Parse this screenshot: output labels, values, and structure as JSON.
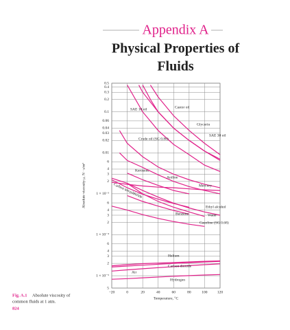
{
  "heading": {
    "label": "Appendix A",
    "title_lines": [
      "Physical Properties of",
      "Fluids"
    ]
  },
  "caption": {
    "label": "Fig. A.1",
    "lines": [
      "Absolute viscosity of",
      "common fluids at 1 atm."
    ]
  },
  "page_number": "824",
  "chart_data": {
    "type": "line",
    "log_y": true,
    "grid": true,
    "color": "#e0218a",
    "ylabel": "Absolute viscosity μ, N · s/m²",
    "xlabel": "Temperature, °C",
    "xlim": [
      -20,
      120
    ],
    "xticks": [
      {
        "value": -20,
        "label": "−20"
      },
      0,
      20,
      40,
      60,
      80,
      100,
      120
    ],
    "ylim": [
      5e-06,
      0.5
    ],
    "yticks": [
      0.5,
      0.4,
      0.3,
      0.2,
      0.1,
      0.06,
      0.04,
      0.03,
      0.02,
      0.01,
      {
        "value": 0.006,
        "label": "6"
      },
      {
        "value": 0.004,
        "label": "4"
      },
      {
        "value": 0.003,
        "label": "3"
      },
      {
        "value": 0.002,
        "label": "2"
      },
      {
        "value": 0.001,
        "label": "1 × 10⁻³"
      },
      {
        "value": 0.0006,
        "label": "6"
      },
      {
        "value": 0.0004,
        "label": "4"
      },
      {
        "value": 0.0003,
        "label": "3"
      },
      {
        "value": 0.0002,
        "label": "2"
      },
      {
        "value": 0.0001,
        "label": "1 × 10⁻⁴"
      },
      {
        "value": 6e-05,
        "label": "6"
      },
      {
        "value": 4e-05,
        "label": "4"
      },
      {
        "value": 3e-05,
        "label": "3"
      },
      {
        "value": 2e-05,
        "label": "2"
      },
      {
        "value": 1e-05,
        "label": "1 × 10⁻⁵"
      },
      {
        "value": 5e-06,
        "label": "5"
      }
    ],
    "series": [
      {
        "name": "Castor oil",
        "x": [
          30,
          40,
          60,
          80,
          100,
          120
        ],
        "values": [
          0.45,
          0.23,
          0.08,
          0.035,
          0.017,
          0.009
        ]
      },
      {
        "name": "Glycerin",
        "x": [
          20,
          30,
          40,
          60,
          80,
          100,
          120
        ],
        "values": [
          0.45,
          0.2,
          0.1,
          0.04,
          0.02,
          0.011,
          0.007
        ]
      },
      {
        "name": "SAE 30 oil",
        "x": [
          15,
          20,
          40,
          60,
          80,
          100,
          120
        ],
        "values": [
          0.45,
          0.3,
          0.1,
          0.04,
          0.02,
          0.011,
          0.0065
        ]
      },
      {
        "name": "SAE 10 oil",
        "x": [
          0,
          20,
          40,
          60,
          80,
          100,
          120
        ],
        "values": [
          0.45,
          0.1,
          0.035,
          0.016,
          0.009,
          0.005,
          0.0035
        ]
      },
      {
        "name": "Crude oil (SG 0.86)",
        "x": [
          -10,
          0,
          20,
          40,
          60,
          80,
          100,
          120
        ],
        "values": [
          0.035,
          0.017,
          0.008,
          0.0045,
          0.003,
          0.0022,
          0.0017,
          0.0014
        ]
      },
      {
        "name": "Kerosene",
        "x": [
          0,
          20,
          40,
          60,
          80
        ],
        "values": [
          0.0032,
          0.0022,
          0.0016,
          0.0012,
          0.001
        ]
      },
      {
        "name": "Aniline",
        "x": [
          -10,
          0,
          20,
          40,
          60,
          80,
          100,
          120
        ],
        "values": [
          0.01,
          0.0065,
          0.0044,
          0.0029,
          0.002,
          0.0015,
          0.0012,
          0.001
        ]
      },
      {
        "name": "Mercury",
        "x": [
          -20,
          0,
          20,
          40,
          60,
          80,
          100,
          120
        ],
        "values": [
          0.0019,
          0.0017,
          0.00155,
          0.00145,
          0.0014,
          0.00132,
          0.00125,
          0.0012
        ]
      },
      {
        "name": "Carbon tetrachloride",
        "x": [
          -20,
          0,
          20,
          40,
          60,
          80
        ],
        "values": [
          0.0022,
          0.0014,
          0.00097,
          0.00074,
          0.00058,
          0.00047
        ]
      },
      {
        "name": "Ethyl alcohol",
        "x": [
          -20,
          0,
          20,
          40,
          60,
          80,
          100,
          120
        ],
        "values": [
          0.0024,
          0.0018,
          0.0012,
          0.00083,
          0.00059,
          0.00045,
          0.00036,
          0.0003
        ]
      },
      {
        "name": "Water",
        "x": [
          0,
          20,
          40,
          60,
          80,
          100
        ],
        "values": [
          0.00179,
          0.001,
          0.00065,
          0.00047,
          0.00036,
          0.00028
        ]
      },
      {
        "name": "Benzene",
        "x": [
          0,
          20,
          40,
          60,
          80
        ],
        "values": [
          0.0009,
          0.00065,
          0.0005,
          0.00039,
          0.00032
        ]
      },
      {
        "name": "Gasoline (SG 0.68)",
        "x": [
          -20,
          0,
          20,
          40,
          60,
          80,
          100
        ],
        "values": [
          0.0005,
          0.0004,
          0.00031,
          0.00025,
          0.00021,
          0.00018,
          0.00016
        ]
      },
      {
        "name": "Helium",
        "x": [
          -20,
          0,
          20,
          60,
          100,
          120
        ],
        "values": [
          1.75e-05,
          1.87e-05,
          1.97e-05,
          2.1e-05,
          2.25e-05,
          2.3e-05
        ]
      },
      {
        "name": "Carbon dioxide",
        "x": [
          -20,
          0,
          20,
          60,
          100,
          120
        ],
        "values": [
          1.3e-05,
          1.39e-05,
          1.48e-05,
          1.67e-05,
          1.86e-05,
          1.95e-05
        ]
      },
      {
        "name": "Air",
        "x": [
          -20,
          0,
          20,
          60,
          100,
          120
        ],
        "values": [
          1.63e-05,
          1.72e-05,
          1.81e-05,
          1.99e-05,
          2.17e-05,
          2.25e-05
        ]
      },
      {
        "name": "Hydrogen",
        "x": [
          -20,
          0,
          20,
          60,
          100,
          120
        ],
        "values": [
          8.2e-06,
          8.5e-06,
          8.9e-06,
          9.7e-06,
          1.04e-05,
          1.07e-05
        ]
      }
    ]
  }
}
